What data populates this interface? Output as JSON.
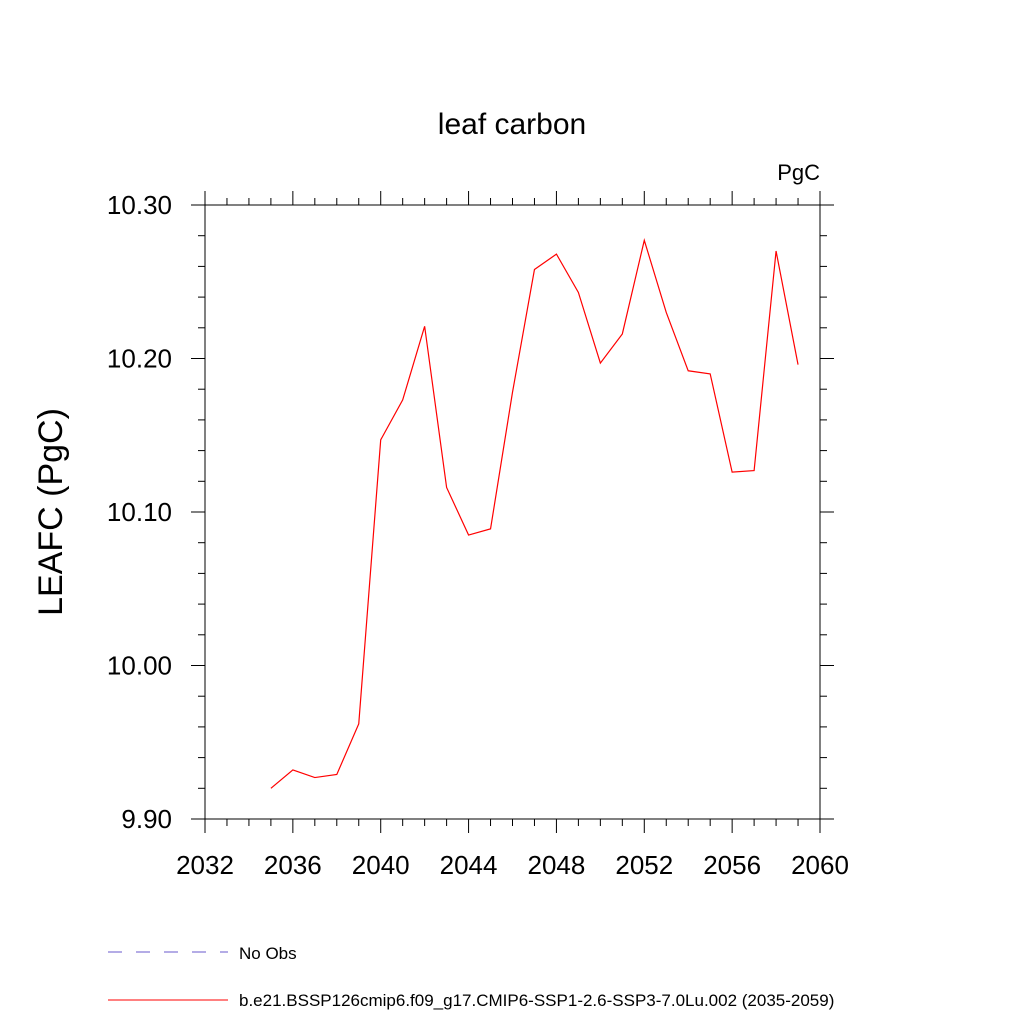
{
  "chart_data": {
    "type": "line",
    "title": "leaf carbon",
    "units": "PgC",
    "xlabel": "",
    "ylabel": "LEAFC  (PgC)",
    "xlim": [
      2032,
      2060
    ],
    "ylim": [
      9.9,
      10.3
    ],
    "xticks": [
      2032,
      2036,
      2040,
      2044,
      2048,
      2052,
      2056,
      2060
    ],
    "xtick_labels": [
      "2032",
      "2036",
      "2040",
      "2044",
      "2048",
      "2052",
      "2056",
      "2060"
    ],
    "yticks": [
      9.9,
      10.0,
      10.1,
      10.2,
      10.3
    ],
    "ytick_labels": [
      "9.90",
      "10.00",
      "10.10",
      "10.20",
      "10.30"
    ],
    "grid": false,
    "series": [
      {
        "name": "b.e21.BSSP126cmip6.f09_g17.CMIP6-SSP1-2.6-SSP3-7.0Lu.002 (2035-2059)",
        "color": "#ff0000",
        "x": [
          2035,
          2036,
          2037,
          2038,
          2039,
          2040,
          2041,
          2042,
          2043,
          2044,
          2045,
          2046,
          2047,
          2048,
          2049,
          2050,
          2051,
          2052,
          2053,
          2054,
          2055,
          2056,
          2057,
          2058,
          2059
        ],
        "values": [
          9.92,
          9.932,
          9.927,
          9.929,
          9.962,
          10.147,
          10.173,
          10.221,
          10.116,
          10.085,
          10.089,
          10.178,
          10.258,
          10.268,
          10.243,
          10.197,
          10.216,
          10.277,
          10.23,
          10.192,
          10.19,
          10.126,
          10.127,
          10.27,
          10.196
        ]
      }
    ],
    "legend": {
      "placement": "bottom",
      "entries": [
        {
          "label": "No Obs",
          "style": "dashed",
          "color": "#6a5acd"
        },
        {
          "label": "b.e21.BSSP126cmip6.f09_g17.CMIP6-SSP1-2.6-SSP3-7.0Lu.002 (2035-2059)",
          "style": "solid",
          "color": "#ff0000"
        }
      ]
    }
  }
}
